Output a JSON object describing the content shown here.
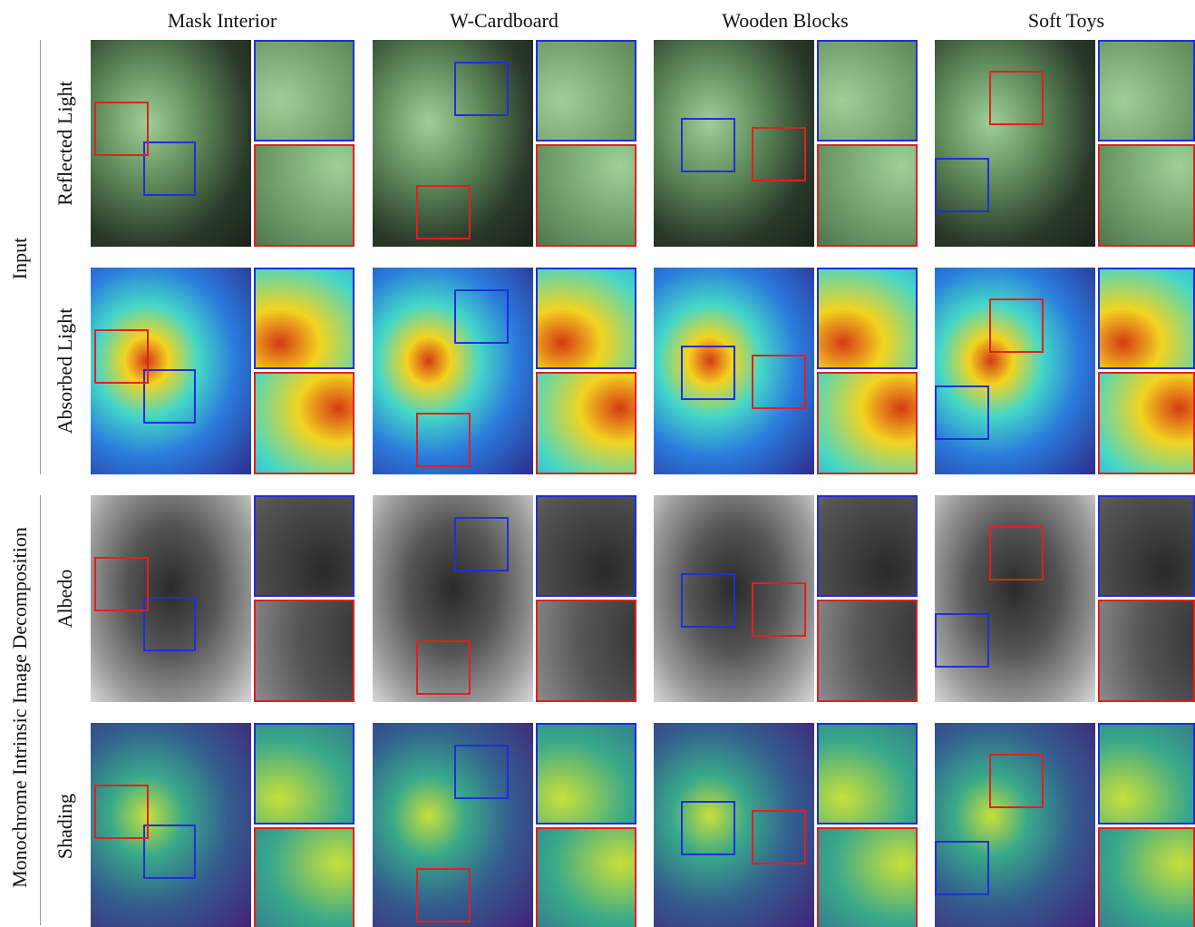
{
  "header": {
    "columns": [
      "Mask Interior",
      "W-Cardboard",
      "Wooden Blocks",
      "Soft Toys"
    ]
  },
  "rows": [
    {
      "label": "Reflected Light"
    },
    {
      "label": "Absorbed Light"
    },
    {
      "label": "Albedo"
    },
    {
      "label": "Shading"
    }
  ],
  "groups": [
    {
      "label": "Input"
    },
    {
      "label": "Monochrome Intrinsic Image Decomposition"
    }
  ]
}
